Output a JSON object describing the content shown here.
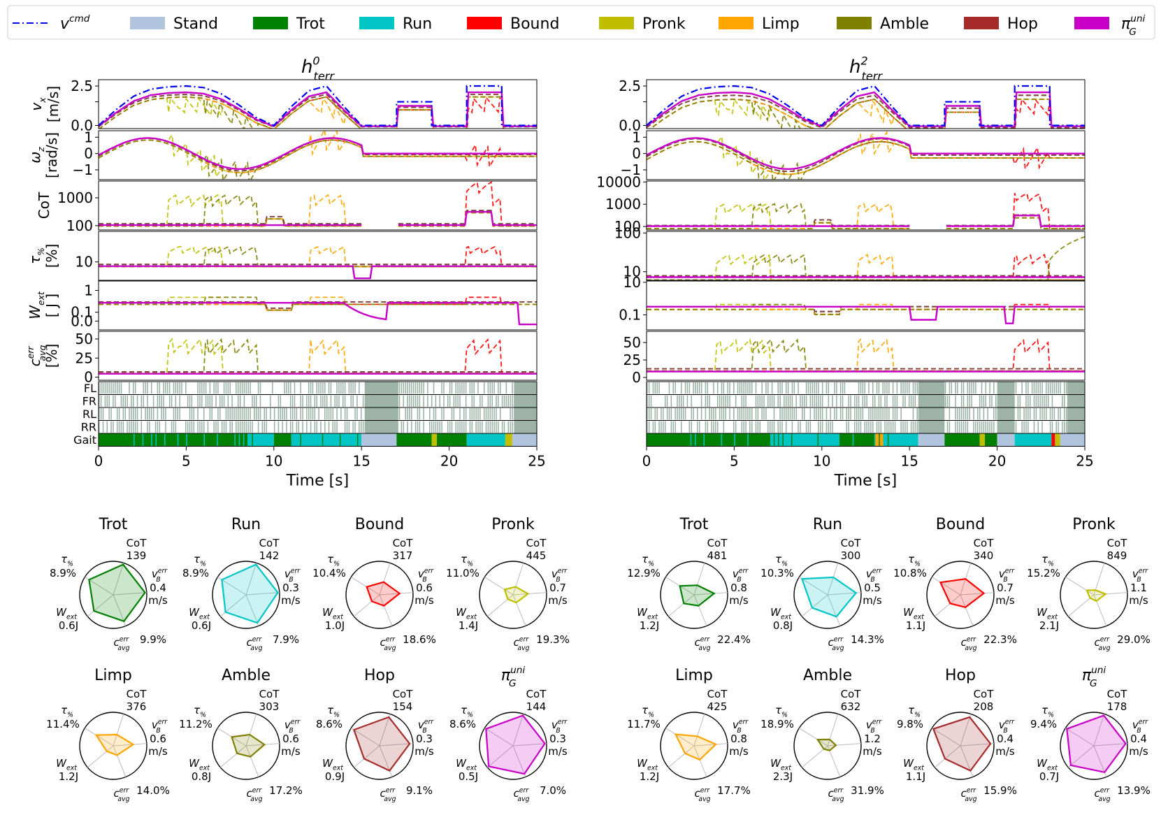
{
  "legend": {
    "items": [
      {
        "key": "vcmd",
        "label": "v",
        "sup": "cmd",
        "kind": "line",
        "color": "#0000ee"
      },
      {
        "key": "stand",
        "label": "Stand",
        "kind": "patch",
        "color": "#b0c4de"
      },
      {
        "key": "trot",
        "label": "Trot",
        "kind": "patch",
        "color": "#008000"
      },
      {
        "key": "run",
        "label": "Run",
        "kind": "patch",
        "color": "#00c5c5"
      },
      {
        "key": "bound",
        "label": "Bound",
        "kind": "patch",
        "color": "#ff0000"
      },
      {
        "key": "pronk",
        "label": "Pronk",
        "kind": "patch",
        "color": "#bfbf00"
      },
      {
        "key": "limp",
        "label": "Limp",
        "kind": "patch",
        "color": "#ffa500"
      },
      {
        "key": "amble",
        "label": "Amble",
        "kind": "patch",
        "color": "#808000"
      },
      {
        "key": "hop",
        "label": "Hop",
        "kind": "patch",
        "color": "#a52a2a"
      },
      {
        "key": "unified",
        "label": "π",
        "sup": "uni",
        "sub": "G",
        "kind": "patch",
        "color": "#c800c8"
      }
    ]
  },
  "chart_data": [
    {
      "type": "line",
      "title": {
        "main": "h",
        "sup": "0",
        "sub": "terr"
      },
      "xlabel": "Time [s]",
      "xlim": [
        0,
        25
      ],
      "xticks": [
        "0",
        "5",
        "10",
        "15",
        "20",
        "25"
      ],
      "panels": [
        {
          "ylabel": "v",
          "ylabel_sub": "x",
          "ylabel_line2": "[m/s]",
          "scale": "linear",
          "ylim": [
            -0.2,
            2.9
          ],
          "ticks": [
            0.0,
            1.5,
            2.5
          ],
          "tick_labels": [
            "0.0",
            "",
            "2.5"
          ]
        },
        {
          "ylabel": "ω",
          "ylabel_sub": "z",
          "ylabel_line2": "[rad/s]",
          "scale": "linear",
          "ylim": [
            -1.6,
            1.4
          ],
          "ticks": [
            -1,
            0,
            1
          ],
          "tick_labels": [
            "−1",
            "0",
            "1"
          ]
        },
        {
          "ylabel": "CoT",
          "scale": "log",
          "ylim": [
            70,
            4000
          ],
          "ticks": [
            100,
            1000
          ],
          "tick_labels": [
            "100",
            "1000"
          ]
        },
        {
          "ylabel": "τ",
          "ylabel_sub": "%",
          "ylabel_line2": "[%]",
          "scale": "log",
          "ylim": [
            2.5,
            100
          ],
          "ticks": [
            10
          ],
          "tick_labels": [
            "10"
          ]
        },
        {
          "ylabel": "W",
          "ylabel_sub": "ext",
          "ylabel_line2": "[ J ]",
          "scale": "symlog",
          "ylim": [
            -0.1,
            2.2
          ],
          "ticks": [
            0.0,
            0.1,
            1
          ],
          "tick_labels": [
            "0.0",
            "0.1",
            "1"
          ]
        },
        {
          "ylabel": "c",
          "ylabel_sup": "err",
          "ylabel_sub": "avg",
          "ylabel_line2": "[%]",
          "scale": "linear",
          "ylim": [
            -4,
            60
          ],
          "ticks": [
            0,
            25,
            50
          ],
          "tick_labels": [
            "0",
            "25",
            "50"
          ]
        }
      ],
      "contact_rows": [
        "FL",
        "FR",
        "RL",
        "RR",
        "Gait"
      ],
      "command_velocity": {
        "x": [
          0,
          1,
          2,
          3,
          4,
          5,
          6,
          7,
          8,
          9,
          10,
          11,
          12,
          13,
          14,
          15,
          16,
          17,
          17.001,
          19,
          19.001,
          21,
          21.001,
          23,
          23.001,
          25
        ],
        "y": [
          0,
          1.0,
          1.85,
          2.3,
          2.45,
          2.5,
          2.4,
          2.0,
          1.3,
          0.5,
          0,
          1.2,
          2.2,
          2.5,
          1.2,
          0,
          0,
          0,
          1.5,
          1.5,
          0,
          0,
          2.5,
          2.5,
          0,
          0
        ]
      },
      "gait_segments": [
        {
          "start": 0,
          "end": 8.5,
          "gait": "trot"
        },
        {
          "start": 8.5,
          "end": 10.0,
          "gait": "run"
        },
        {
          "start": 10.0,
          "end": 11.0,
          "gait": "trot"
        },
        {
          "start": 11.0,
          "end": 15.0,
          "gait": "run"
        },
        {
          "start": 15.0,
          "end": 17.0,
          "gait": "stand"
        },
        {
          "start": 17.0,
          "end": 19.0,
          "gait": "trot"
        },
        {
          "start": 19.0,
          "end": 19.3,
          "gait": "pronk"
        },
        {
          "start": 19.3,
          "end": 21.0,
          "gait": "trot"
        },
        {
          "start": 21.0,
          "end": 23.2,
          "gait": "run"
        },
        {
          "start": 23.2,
          "end": 23.6,
          "gait": "pronk"
        },
        {
          "start": 23.6,
          "end": 25.0,
          "gait": "stand"
        }
      ],
      "stance_blocks": [
        {
          "start": 15.2,
          "end": 17.1
        },
        {
          "start": 23.7,
          "end": 25.0
        }
      ],
      "radar": [
        {
          "name": "Trot",
          "color": "#008000",
          "cot": "139",
          "tau": "8.9%",
          "v": "0.4",
          "w": "0.6J",
          "c": "9.9%",
          "r": [
            0.95,
            0.95,
            0.85,
            0.75,
            0.85
          ]
        },
        {
          "name": "Run",
          "color": "#00c5c5",
          "cot": "142",
          "tau": "8.9%",
          "v": "0.3",
          "w": "0.6J",
          "c": "7.9%",
          "r": [
            0.95,
            0.95,
            0.9,
            0.8,
            0.85
          ]
        },
        {
          "name": "Bound",
          "color": "#ff0000",
          "cot": "317",
          "tau": "10.4%",
          "v": "0.6",
          "w": "1.0J",
          "c": "18.6%",
          "r": [
            0.4,
            0.6,
            0.35,
            0.3,
            0.45
          ]
        },
        {
          "name": "Pronk",
          "color": "#bfbf00",
          "cot": "445",
          "tau": "11.0%",
          "v": "0.7",
          "w": "1.4J",
          "c": "19.3%",
          "r": [
            0.25,
            0.45,
            0.25,
            0.2,
            0.3
          ]
        },
        {
          "name": "Limp",
          "color": "#ffa500",
          "cot": "376",
          "tau": "11.4%",
          "v": "0.6",
          "w": "1.2J",
          "c": "14.0%",
          "r": [
            0.35,
            0.6,
            0.3,
            0.25,
            0.6
          ]
        },
        {
          "name": "Amble",
          "color": "#808000",
          "cot": "303",
          "tau": "11.2%",
          "v": "0.6",
          "w": "0.8J",
          "c": "17.2%",
          "r": [
            0.35,
            0.55,
            0.35,
            0.35,
            0.5
          ]
        },
        {
          "name": "Hop",
          "color": "#a52a2a",
          "cot": "154",
          "tau": "8.6%",
          "v": "0.3",
          "w": "0.9J",
          "c": "9.1%",
          "r": [
            0.9,
            0.9,
            0.8,
            0.6,
            0.9
          ]
        },
        {
          "name": "π",
          "name_sup": "uni",
          "name_sub": "G",
          "color": "#c800c8",
          "cot": "144",
          "tau": "8.6%",
          "v": "0.3",
          "w": "0.5J",
          "c": "7.0%",
          "r": [
            0.95,
            0.95,
            0.9,
            0.95,
            0.95
          ]
        }
      ]
    },
    {
      "type": "line",
      "title": {
        "main": "h",
        "sup": "2",
        "sub": "terr"
      },
      "xlabel": "Time [s]",
      "xlim": [
        0,
        25
      ],
      "xticks": [
        "0",
        "5",
        "10",
        "15",
        "20",
        "25"
      ],
      "panels": [
        {
          "ylabel": "",
          "scale": "linear",
          "ylim": [
            -0.2,
            2.9
          ],
          "ticks": [
            0.0,
            1.5,
            2.5
          ],
          "tick_labels": [
            "0.0",
            "",
            "2.5"
          ]
        },
        {
          "ylabel": "",
          "scale": "linear",
          "ylim": [
            -1.6,
            1.4
          ],
          "ticks": [
            -1,
            0,
            1
          ],
          "tick_labels": [
            "−1",
            "0",
            "1"
          ]
        },
        {
          "ylabel": "",
          "scale": "log",
          "ylim": [
            70,
            11000
          ],
          "ticks": [
            100,
            1000,
            10000
          ],
          "tick_labels": [
            "100",
            "1000",
            "10000"
          ]
        },
        {
          "ylabel": "",
          "scale": "log",
          "ylim": [
            6,
            110
          ],
          "ticks": [
            10,
            100
          ],
          "tick_labels": [
            "10",
            "100"
          ]
        },
        {
          "ylabel": "",
          "scale": "log",
          "ylim": [
            0.012,
            12
          ],
          "ticks": [
            0.1,
            10
          ],
          "tick_labels": [
            "0.1",
            "10"
          ]
        },
        {
          "ylabel": "",
          "scale": "linear",
          "ylim": [
            -4,
            66
          ],
          "ticks": [
            0,
            25,
            50
          ],
          "tick_labels": [
            "0",
            "25",
            "50"
          ]
        }
      ],
      "contact_rows": [],
      "command_velocity": {
        "x": [
          0,
          1,
          2,
          3,
          4,
          5,
          6,
          7,
          8,
          9,
          10,
          11,
          12,
          13,
          14,
          15,
          16,
          17,
          17.001,
          19,
          19.001,
          21,
          21.001,
          23,
          23.001,
          25
        ],
        "y": [
          0,
          1.0,
          1.85,
          2.3,
          2.45,
          2.5,
          2.4,
          2.0,
          1.3,
          0.5,
          0,
          1.2,
          2.2,
          2.5,
          1.2,
          0,
          0,
          0,
          1.5,
          1.5,
          0,
          0,
          2.5,
          2.5,
          0,
          0
        ]
      },
      "gait_segments": [
        {
          "start": 0,
          "end": 7.0,
          "gait": "trot"
        },
        {
          "start": 7.0,
          "end": 11.0,
          "gait": "run"
        },
        {
          "start": 11.0,
          "end": 13.0,
          "gait": "trot"
        },
        {
          "start": 13.0,
          "end": 13.5,
          "gait": "limp"
        },
        {
          "start": 13.5,
          "end": 15.5,
          "gait": "run"
        },
        {
          "start": 15.5,
          "end": 17.0,
          "gait": "stand"
        },
        {
          "start": 17.0,
          "end": 19.0,
          "gait": "trot"
        },
        {
          "start": 19.0,
          "end": 19.3,
          "gait": "pronk"
        },
        {
          "start": 19.3,
          "end": 20.0,
          "gait": "trot"
        },
        {
          "start": 20.0,
          "end": 21.0,
          "gait": "stand"
        },
        {
          "start": 21.0,
          "end": 23.1,
          "gait": "run"
        },
        {
          "start": 23.1,
          "end": 23.3,
          "gait": "bound"
        },
        {
          "start": 23.3,
          "end": 23.6,
          "gait": "pronk"
        },
        {
          "start": 23.6,
          "end": 25.0,
          "gait": "stand"
        }
      ],
      "stance_blocks": [
        {
          "start": 15.5,
          "end": 17.0
        },
        {
          "start": 20.0,
          "end": 21.0
        },
        {
          "start": 24.0,
          "end": 25.0
        }
      ],
      "radar": [
        {
          "name": "Trot",
          "color": "#008000",
          "cot": "481",
          "tau": "12.9%",
          "v": "0.8",
          "w": "1.2J",
          "c": "22.4%",
          "r": [
            0.3,
            0.6,
            0.35,
            0.4,
            0.5
          ]
        },
        {
          "name": "Run",
          "color": "#00c5c5",
          "cot": "300",
          "tau": "10.3%",
          "v": "0.5",
          "w": "0.8J",
          "c": "14.3%",
          "r": [
            0.55,
            0.85,
            0.7,
            0.6,
            0.9
          ]
        },
        {
          "name": "Bound",
          "color": "#ff0000",
          "cot": "340",
          "tau": "10.8%",
          "v": "0.7",
          "w": "1.1J",
          "c": "22.3%",
          "r": [
            0.5,
            0.7,
            0.4,
            0.4,
            0.7
          ]
        },
        {
          "name": "Pronk",
          "color": "#bfbf00",
          "cot": "849",
          "tau": "15.2%",
          "v": "1.1",
          "w": "2.1J",
          "c": "29.0%",
          "r": [
            0.15,
            0.35,
            0.2,
            0.15,
            0.25
          ]
        },
        {
          "name": "Limp",
          "color": "#ffa500",
          "cot": "425",
          "tau": "11.7%",
          "v": "0.8",
          "w": "1.2J",
          "c": "17.7%",
          "r": [
            0.3,
            0.65,
            0.45,
            0.35,
            0.65
          ]
        },
        {
          "name": "Amble",
          "color": "#808000",
          "cot": "632",
          "tau": "18.9%",
          "v": "1.2",
          "w": "2.3J",
          "c": "31.9%",
          "r": [
            0.2,
            0.25,
            0.15,
            0.15,
            0.35
          ]
        },
        {
          "name": "Hop",
          "color": "#a52a2a",
          "cot": "208",
          "tau": "9.8%",
          "v": "0.4",
          "w": "1.1J",
          "c": "15.9%",
          "r": [
            0.9,
            0.9,
            0.8,
            0.6,
            0.95
          ]
        },
        {
          "name": "π",
          "name_sup": "uni",
          "name_sub": "G",
          "color": "#c800c8",
          "cot": "178",
          "tau": "9.4%",
          "v": "0.4",
          "w": "0.7J",
          "c": "13.9%",
          "r": [
            0.95,
            0.95,
            0.85,
            0.9,
            0.95
          ]
        }
      ]
    }
  ],
  "radar_axis": {
    "cot": "CoT",
    "tau": "τ",
    "tau_sub": "%",
    "v": "v",
    "v_sub": "B",
    "v_sup": "err",
    "v_unit": "m/s",
    "w": "W",
    "w_sub": "ext",
    "c": "c",
    "c_sub": "avg",
    "c_sup": "err"
  }
}
